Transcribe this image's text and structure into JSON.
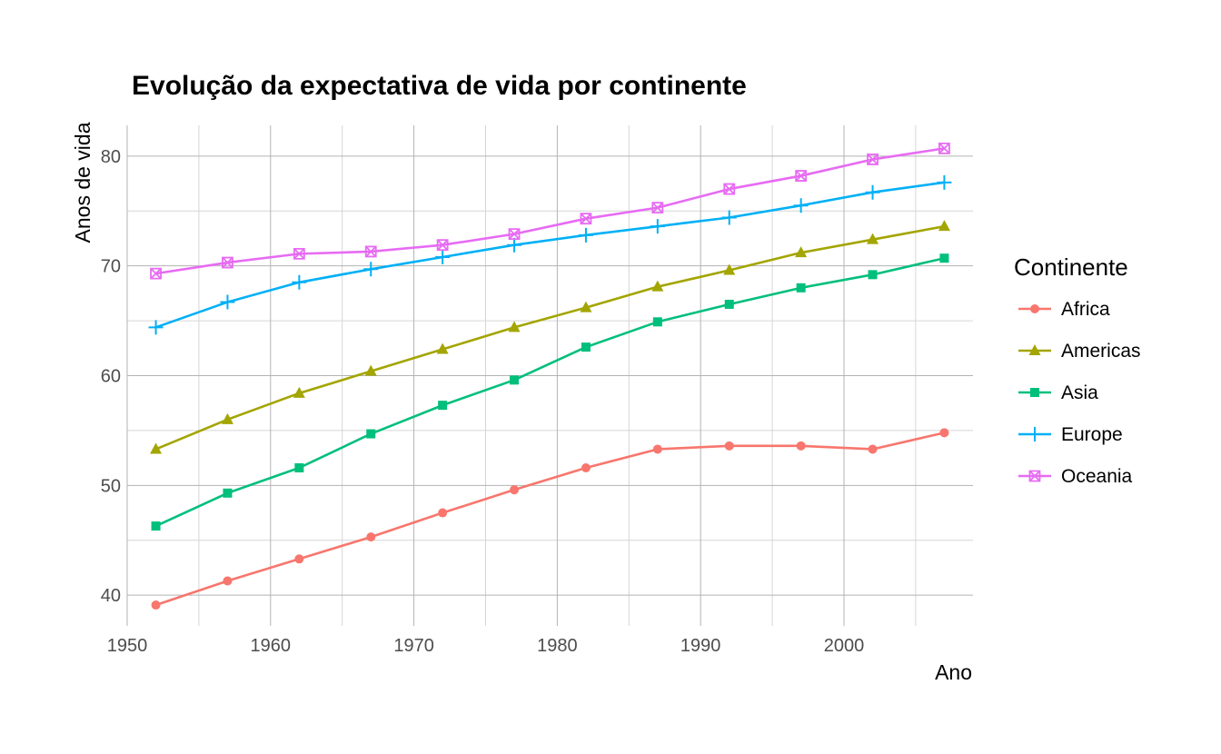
{
  "chart_data": {
    "type": "line",
    "title": "Evolução da expectativa de vida por continente",
    "xlabel": "Ano",
    "ylabel": "Anos de vida",
    "x": [
      1952,
      1957,
      1962,
      1967,
      1972,
      1977,
      1982,
      1987,
      1992,
      1997,
      2002,
      2007
    ],
    "xlim": [
      1950,
      2009
    ],
    "ylim": [
      37.2,
      82.8
    ],
    "xticks": [
      "1950",
      "1960",
      "1970",
      "1980",
      "1990",
      "2000"
    ],
    "yticks": [
      "40",
      "50",
      "60",
      "70",
      "80"
    ],
    "grid": true,
    "legend": {
      "title": "Continente",
      "position": "right"
    },
    "series": [
      {
        "name": "Africa",
        "color": "#F8766D",
        "marker": "circle",
        "values": [
          39.1,
          41.3,
          43.3,
          45.3,
          47.5,
          49.6,
          51.6,
          53.3,
          53.6,
          53.6,
          53.3,
          54.8
        ]
      },
      {
        "name": "Americas",
        "color": "#A3A500",
        "marker": "triangle",
        "values": [
          53.3,
          56.0,
          58.4,
          60.4,
          62.4,
          64.4,
          66.2,
          68.1,
          69.6,
          71.2,
          72.4,
          73.6
        ]
      },
      {
        "name": "Asia",
        "color": "#00BF7D",
        "marker": "square",
        "values": [
          46.3,
          49.3,
          51.6,
          54.7,
          57.3,
          59.6,
          62.6,
          64.9,
          66.5,
          68.0,
          69.2,
          70.7
        ]
      },
      {
        "name": "Europe",
        "color": "#00B0F6",
        "marker": "plus",
        "values": [
          64.4,
          66.7,
          68.5,
          69.7,
          70.8,
          71.9,
          72.8,
          73.6,
          74.4,
          75.5,
          76.7,
          77.6
        ]
      },
      {
        "name": "Oceania",
        "color": "#E76BF3",
        "marker": "boxcross",
        "values": [
          69.3,
          70.3,
          71.1,
          71.3,
          71.9,
          72.9,
          74.3,
          75.3,
          77.0,
          78.2,
          79.7,
          80.7
        ]
      }
    ]
  }
}
